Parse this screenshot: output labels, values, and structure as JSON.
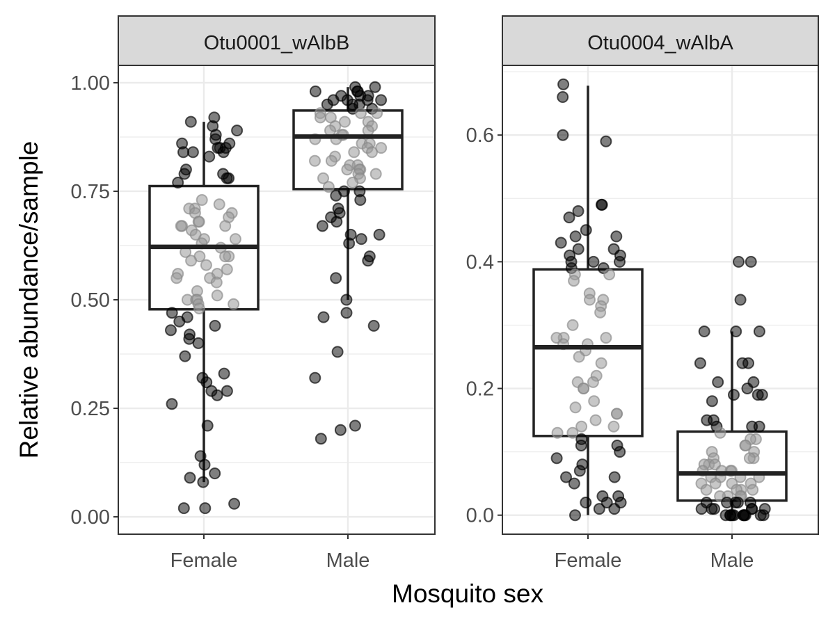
{
  "chart_data": {
    "type": "boxplot",
    "xlabel": "Mosquito sex",
    "ylabel": "Relative abundance/sample",
    "categories": [
      "Female",
      "Male"
    ],
    "facets": [
      {
        "name": "Otu0001_wAlbB",
        "ylim": [
          -0.04,
          1.04
        ],
        "yticks": [
          0.0,
          0.25,
          0.5,
          0.75,
          1.0
        ],
        "ytick_labels": [
          "0.00",
          "0.25",
          "0.50",
          "0.75",
          "1.00"
        ],
        "boxes": [
          {
            "category": "Female",
            "whisker_low": 0.08,
            "q1": 0.478,
            "median": 0.622,
            "q3": 0.762,
            "whisker_high": 0.91
          },
          {
            "category": "Male",
            "whisker_low": 0.5,
            "q1": 0.755,
            "median": 0.876,
            "q3": 0.936,
            "whisker_high": 0.99
          }
        ],
        "points": {
          "Female": [
            0.92,
            0.91,
            0.9,
            0.89,
            0.88,
            0.87,
            0.86,
            0.86,
            0.85,
            0.85,
            0.85,
            0.84,
            0.84,
            0.84,
            0.83,
            0.8,
            0.79,
            0.79,
            0.78,
            0.78,
            0.77,
            0.73,
            0.72,
            0.71,
            0.71,
            0.7,
            0.7,
            0.69,
            0.68,
            0.68,
            0.67,
            0.67,
            0.67,
            0.66,
            0.65,
            0.64,
            0.64,
            0.63,
            0.62,
            0.61,
            0.6,
            0.6,
            0.6,
            0.59,
            0.58,
            0.57,
            0.56,
            0.56,
            0.55,
            0.55,
            0.54,
            0.52,
            0.51,
            0.5,
            0.5,
            0.5,
            0.49,
            0.49,
            0.48,
            0.47,
            0.46,
            0.45,
            0.44,
            0.43,
            0.42,
            0.41,
            0.4,
            0.37,
            0.33,
            0.32,
            0.31,
            0.29,
            0.29,
            0.28,
            0.26,
            0.21,
            0.14,
            0.12,
            0.1,
            0.09,
            0.08,
            0.03,
            0.02,
            0.02
          ],
          "Male": [
            0.99,
            0.99,
            0.98,
            0.98,
            0.98,
            0.97,
            0.97,
            0.97,
            0.96,
            0.96,
            0.96,
            0.96,
            0.95,
            0.95,
            0.95,
            0.94,
            0.94,
            0.93,
            0.93,
            0.93,
            0.92,
            0.92,
            0.91,
            0.91,
            0.9,
            0.9,
            0.89,
            0.89,
            0.88,
            0.88,
            0.87,
            0.87,
            0.86,
            0.86,
            0.85,
            0.85,
            0.84,
            0.84,
            0.83,
            0.82,
            0.82,
            0.81,
            0.81,
            0.8,
            0.8,
            0.8,
            0.79,
            0.79,
            0.78,
            0.78,
            0.77,
            0.76,
            0.75,
            0.75,
            0.74,
            0.73,
            0.71,
            0.7,
            0.69,
            0.68,
            0.67,
            0.65,
            0.65,
            0.64,
            0.63,
            0.6,
            0.59,
            0.55,
            0.5,
            0.47,
            0.46,
            0.44,
            0.38,
            0.32,
            0.21,
            0.2,
            0.18
          ]
        }
      },
      {
        "name": "Otu0004_wAlbA",
        "ylim": [
          -0.03,
          0.71
        ],
        "yticks": [
          0.0,
          0.2,
          0.4,
          0.6
        ],
        "ytick_labels": [
          "0.0",
          "0.2",
          "0.4",
          "0.6"
        ],
        "boxes": [
          {
            "category": "Female",
            "whisker_low": 0.0,
            "q1": 0.125,
            "median": 0.265,
            "q3": 0.388,
            "whisker_high": 0.678
          },
          {
            "category": "Male",
            "whisker_low": 0.0,
            "q1": 0.023,
            "median": 0.066,
            "q3": 0.132,
            "whisker_high": 0.29
          }
        ],
        "points": {
          "Female": [
            0.68,
            0.66,
            0.6,
            0.59,
            0.49,
            0.49,
            0.48,
            0.47,
            0.45,
            0.44,
            0.44,
            0.43,
            0.42,
            0.42,
            0.41,
            0.41,
            0.4,
            0.4,
            0.4,
            0.39,
            0.39,
            0.38,
            0.38,
            0.37,
            0.35,
            0.34,
            0.34,
            0.33,
            0.32,
            0.3,
            0.28,
            0.28,
            0.28,
            0.27,
            0.27,
            0.26,
            0.25,
            0.24,
            0.22,
            0.21,
            0.21,
            0.2,
            0.2,
            0.18,
            0.17,
            0.16,
            0.16,
            0.15,
            0.14,
            0.14,
            0.13,
            0.13,
            0.12,
            0.11,
            0.11,
            0.1,
            0.09,
            0.08,
            0.07,
            0.06,
            0.06,
            0.05,
            0.03,
            0.03,
            0.02,
            0.02,
            0.02,
            0.01,
            0.01,
            0.0
          ],
          "Male": [
            0.4,
            0.4,
            0.34,
            0.29,
            0.29,
            0.29,
            0.24,
            0.24,
            0.24,
            0.21,
            0.21,
            0.2,
            0.19,
            0.19,
            0.19,
            0.18,
            0.15,
            0.15,
            0.14,
            0.14,
            0.14,
            0.13,
            0.12,
            0.12,
            0.11,
            0.11,
            0.1,
            0.1,
            0.09,
            0.09,
            0.09,
            0.08,
            0.08,
            0.08,
            0.07,
            0.07,
            0.07,
            0.07,
            0.06,
            0.06,
            0.06,
            0.06,
            0.05,
            0.05,
            0.05,
            0.05,
            0.04,
            0.04,
            0.04,
            0.04,
            0.03,
            0.03,
            0.03,
            0.03,
            0.02,
            0.02,
            0.02,
            0.02,
            0.02,
            0.01,
            0.01,
            0.01,
            0.01,
            0.01,
            0.01,
            0.0,
            0.0,
            0.0,
            0.0,
            0.0,
            0.0,
            0.0,
            0.0,
            0.0,
            0.0,
            0.0
          ]
        }
      }
    ],
    "colors": {
      "point_fill_outside": "#000000",
      "point_fill_inside": "#999999",
      "box_stroke": "#222222",
      "grid_major": "#ebebeb",
      "strip_fill": "#d9d9d9",
      "panel_border": "#333333"
    }
  }
}
